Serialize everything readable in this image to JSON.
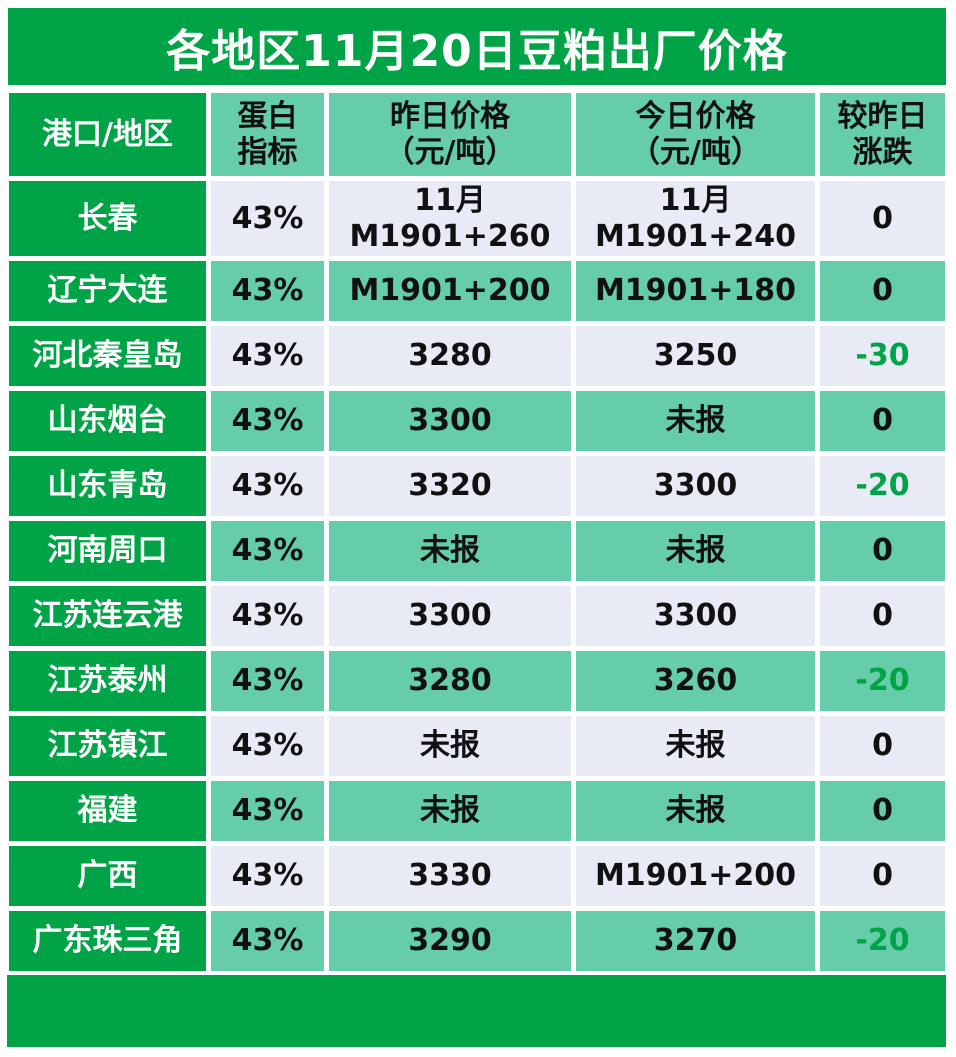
{
  "title": "各地区11月20日豆粕出厂价格",
  "header": {
    "region": "港口/地区",
    "protein_line1": "蛋白",
    "protein_line2": "指标",
    "yesterday_line1": "昨日价格",
    "yesterday_line2": "（元/吨）",
    "today_line1": "今日价格",
    "today_line2": "（元/吨）",
    "change_line1": "较昨日",
    "change_line2": "涨跌"
  },
  "rows": [
    {
      "region": "长春",
      "protein": "43%",
      "yesterday": "11月",
      "yesterday_2": "M1901+260",
      "today": "11月",
      "today_2": "M1901+240",
      "change": "0"
    },
    {
      "region": "辽宁大连",
      "protein": "43%",
      "yesterday": "M1901+200",
      "today": "M1901+180",
      "change": "0"
    },
    {
      "region": "河北秦皇岛",
      "protein": "43%",
      "yesterday": "3280",
      "today": "3250",
      "change": "-30"
    },
    {
      "region": "山东烟台",
      "protein": "43%",
      "yesterday": "3300",
      "today": "未报",
      "change": "0"
    },
    {
      "region": "山东青岛",
      "protein": "43%",
      "yesterday": "3320",
      "today": "3300",
      "change": "-20"
    },
    {
      "region": "河南周口",
      "protein": "43%",
      "yesterday": "未报",
      "today": "未报",
      "change": "0"
    },
    {
      "region": "江苏连云港",
      "protein": "43%",
      "yesterday": "3300",
      "today": "3300",
      "change": "0"
    },
    {
      "region": "江苏泰州",
      "protein": "43%",
      "yesterday": "3280",
      "today": "3260",
      "change": "-20"
    },
    {
      "region": "江苏镇江",
      "protein": "43%",
      "yesterday": "未报",
      "today": "未报",
      "change": "0"
    },
    {
      "region": "福建",
      "protein": "43%",
      "yesterday": "未报",
      "today": "未报",
      "change": "0"
    },
    {
      "region": "广西",
      "protein": "43%",
      "yesterday": "3330",
      "today": "M1901+200",
      "change": "0"
    },
    {
      "region": "广东珠三角",
      "protein": "43%",
      "yesterday": "3290",
      "today": "3270",
      "change": "-20"
    }
  ],
  "colors": {
    "brand_green": "#00a346",
    "teal": "#66cdaa",
    "light": "#e8eaf6",
    "negative_text": "#00a346"
  }
}
